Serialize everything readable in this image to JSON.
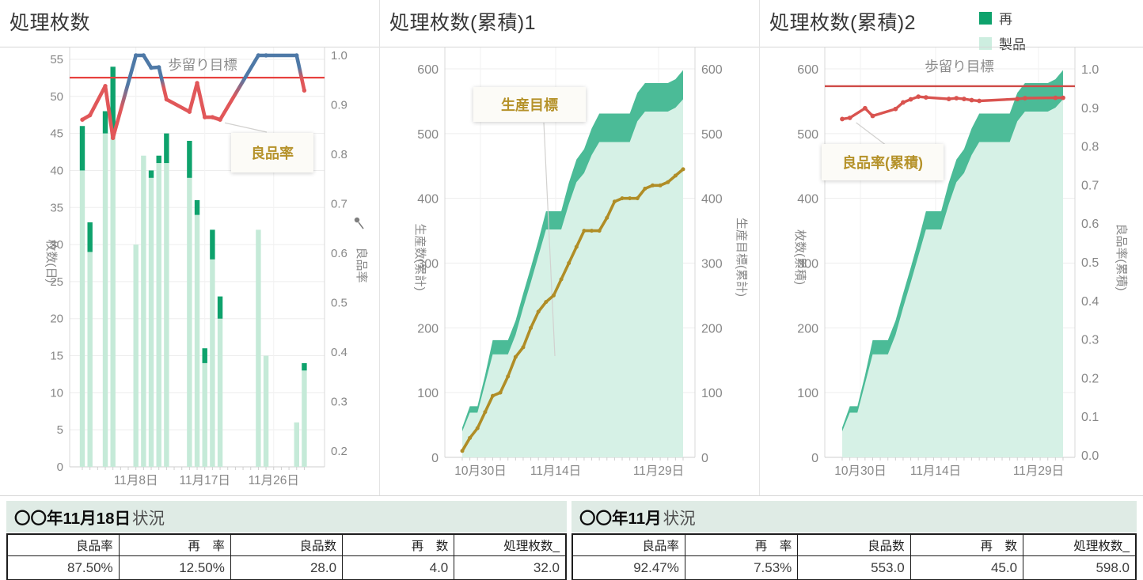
{
  "legend": {
    "items": [
      {
        "label": "再",
        "color": "#0ea26c"
      },
      {
        "label": "製品",
        "color": "#cdeee0"
      }
    ]
  },
  "colors": {
    "target_red": "#e8423f",
    "line_red": "#e15759",
    "line_blue": "#4e79a7",
    "cum_rate_red": "#d9534f",
    "gold": "#b08d26",
    "dark_green": "#0ea26c",
    "light_green_bar": "#c5ead8",
    "cum_fill": "#d6f1e6",
    "cum_band": "#4bbb97",
    "grid": "#ededed",
    "axis_text": "#878787",
    "caption_bg": "#dfebe5"
  },
  "chart_data": [
    {
      "type": "bar",
      "title": "処理枚数",
      "y_left": {
        "label": "枚数(日)",
        "min": 0,
        "max": 55,
        "step": 5
      },
      "y_right": {
        "label": "良品率",
        "min": 0.2,
        "max": 1.0,
        "step": 0.1
      },
      "x_tick_labels": [
        "11月8日",
        "11月17日",
        "11月26日"
      ],
      "x_tick_days": [
        8,
        17,
        26
      ],
      "target": {
        "label": "歩留り目標",
        "value": 0.955
      },
      "annotation": {
        "label": "良品率"
      },
      "series": [
        {
          "name": "製品"
        },
        {
          "name": "再"
        },
        {
          "name": "良品率"
        }
      ],
      "records": [
        {
          "date": "11月1日",
          "day": 1,
          "product": 40,
          "rework": 6,
          "total": 46,
          "rate": 0.87,
          "cum_total": 46,
          "cum_good": 40,
          "cum_rate": 0.87
        },
        {
          "date": "11月2日",
          "day": 2,
          "product": 29,
          "rework": 4,
          "total": 33,
          "rate": 0.879,
          "cum_total": 79,
          "cum_good": 69,
          "cum_rate": 0.873
        },
        {
          "date": "11月4日",
          "day": 4,
          "product": 45,
          "rework": 3,
          "total": 48,
          "rate": 0.938,
          "cum_total": 127,
          "cum_good": 114,
          "cum_rate": 0.898
        },
        {
          "date": "11月5日",
          "day": 5,
          "product": 45,
          "rework": 9,
          "total": 54,
          "rate": 0.833,
          "cum_total": 181,
          "cum_good": 159,
          "cum_rate": 0.878
        },
        {
          "date": "11月8日",
          "day": 8,
          "product": 30,
          "rework": 0,
          "total": 30,
          "rate": 1.0,
          "cum_total": 211,
          "cum_good": 189,
          "cum_rate": 0.896
        },
        {
          "date": "11月9日",
          "day": 9,
          "product": 42,
          "rework": 0,
          "total": 42,
          "rate": 1.0,
          "cum_total": 253,
          "cum_good": 231,
          "cum_rate": 0.913
        },
        {
          "date": "11月10日",
          "day": 10,
          "product": 39,
          "rework": 1,
          "total": 40,
          "rate": 0.975,
          "cum_total": 293,
          "cum_good": 270,
          "cum_rate": 0.921
        },
        {
          "date": "11月11日",
          "day": 11,
          "product": 41,
          "rework": 1,
          "total": 42,
          "rate": 0.976,
          "cum_total": 335,
          "cum_good": 311,
          "cum_rate": 0.928
        },
        {
          "date": "11月12日",
          "day": 12,
          "product": 41,
          "rework": 4,
          "total": 45,
          "rate": 0.911,
          "cum_total": 380,
          "cum_good": 352,
          "cum_rate": 0.926
        },
        {
          "date": "11月15日",
          "day": 15,
          "product": 39,
          "rework": 5,
          "total": 44,
          "rate": 0.886,
          "cum_total": 424,
          "cum_good": 391,
          "cum_rate": 0.922
        },
        {
          "date": "11月16日",
          "day": 16,
          "product": 34,
          "rework": 2,
          "total": 36,
          "rate": 0.944,
          "cum_total": 460,
          "cum_good": 425,
          "cum_rate": 0.924
        },
        {
          "date": "11月17日",
          "day": 17,
          "product": 14,
          "rework": 2,
          "total": 16,
          "rate": 0.875,
          "cum_total": 476,
          "cum_good": 439,
          "cum_rate": 0.922
        },
        {
          "date": "11月18日",
          "day": 18,
          "product": 28,
          "rework": 4,
          "total": 32,
          "rate": 0.875,
          "cum_total": 508,
          "cum_good": 467,
          "cum_rate": 0.919
        },
        {
          "date": "11月19日",
          "day": 19,
          "product": 20,
          "rework": 3,
          "total": 23,
          "rate": 0.87,
          "cum_total": 531,
          "cum_good": 487,
          "cum_rate": 0.917
        },
        {
          "date": "11月24日",
          "day": 24,
          "product": 32,
          "rework": 0,
          "total": 32,
          "rate": 1.0,
          "cum_total": 563,
          "cum_good": 519,
          "cum_rate": 0.922
        },
        {
          "date": "11月25日",
          "day": 25,
          "product": 15,
          "rework": 0,
          "total": 15,
          "rate": 1.0,
          "cum_total": 578,
          "cum_good": 534,
          "cum_rate": 0.924
        },
        {
          "date": "11月29日",
          "day": 29,
          "product": 6,
          "rework": 0,
          "total": 6,
          "rate": 1.0,
          "cum_total": 584,
          "cum_good": 540,
          "cum_rate": 0.925
        },
        {
          "date": "11月30日",
          "day": 30,
          "product": 13,
          "rework": 1,
          "total": 14,
          "rate": 0.929,
          "cum_total": 598,
          "cum_good": 553,
          "cum_rate": 0.925
        }
      ]
    },
    {
      "type": "area",
      "title": "処理枚数(累積)1",
      "y_left": {
        "label": "生産数(累計)",
        "min": 0,
        "max": 600,
        "step": 100
      },
      "y_right": {
        "label": "生産目標(累計)",
        "min": 0,
        "max": 600,
        "step": 100
      },
      "x_tick_labels": [
        "10月30日",
        "11月14日",
        "11月29日"
      ],
      "annotation": {
        "label": "生産目標"
      },
      "target_line": {
        "name": "生産目標",
        "values_by_day": [
          10,
          30,
          45,
          70,
          95,
          100,
          125,
          155,
          170,
          200,
          225,
          240,
          250,
          275,
          300,
          325,
          350,
          350,
          350,
          370,
          395,
          400,
          400,
          400,
          415,
          420,
          420,
          425,
          435,
          445
        ]
      }
    },
    {
      "type": "area",
      "title": "処理枚数(累積)2",
      "y_left": {
        "label": "枚数(累積)",
        "min": 0,
        "max": 600,
        "step": 100
      },
      "y_right": {
        "label": "良品率(累積)",
        "min": 0.0,
        "max": 1.0,
        "step": 0.1
      },
      "x_tick_labels": [
        "10月30日",
        "11月14日",
        "11月29日"
      ],
      "target": {
        "label": "歩留り目標",
        "value": 0.955
      },
      "annotation": {
        "label": "良品率(累積)"
      }
    }
  ],
  "tables": {
    "daily": {
      "caption_strong": "〇〇年11月18日",
      "caption_rest": "状況",
      "columns": [
        "良品率",
        "再　率",
        "良品数",
        "再　数",
        "処理枚数_"
      ],
      "values": [
        "87.50%",
        "12.50%",
        "28.0",
        "4.0",
        "32.0"
      ]
    },
    "monthly": {
      "caption_strong": "〇〇年11月",
      "caption_rest": "状況",
      "columns": [
        "良品率",
        "再　率",
        "良品数",
        "再　数",
        "処理枚数_"
      ],
      "values": [
        "92.47%",
        "7.53%",
        "553.0",
        "45.0",
        "598.0"
      ]
    }
  }
}
